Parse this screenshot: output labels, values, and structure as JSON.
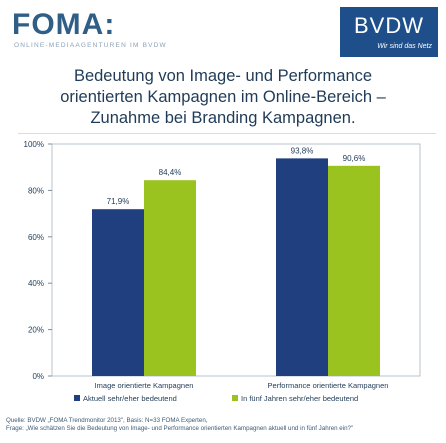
{
  "header": {
    "left_logo": "FOMA:",
    "left_logo_subtitle": "ONLINE-MEDIAAGENTUREN IM BVDW",
    "right_logo": "BVDW",
    "right_logo_tagline": "Wir sind das Netz"
  },
  "title": {
    "line1": "Bedeutung von Image- und Performance",
    "line2": "orientierten Kampagnen im Online-Bereich –",
    "line3": "Zunahme bei Branding Kampagnen."
  },
  "chart_data": {
    "type": "bar",
    "categories": [
      "Image orientierte Kampagnen",
      "Performance orientierte Kampagnen"
    ],
    "series": [
      {
        "name": "Aktuell sehr/eher bedeutend",
        "values": [
          71.9,
          93.8
        ],
        "labels": [
          "71,9%",
          "93,8%"
        ],
        "color": "#1f3f7e"
      },
      {
        "name": "In fünf Jahren sehr/eher bedeutend",
        "values": [
          84.4,
          90.6
        ],
        "labels": [
          "84,4%",
          "90,6%"
        ],
        "color": "#9bc31f"
      }
    ],
    "ylim": [
      0,
      100
    ],
    "yticks": [
      "0%",
      "20%",
      "40%",
      "60%",
      "80%",
      "100%"
    ],
    "legend": "bottom",
    "grid": false
  },
  "footer": {
    "source_line": "Quelle: BVDW „FOMA Trendmonitor 2013\", Basis: N=33 FOMA Experten,",
    "question_line": "Frage: „Wie schätzen Sie die Bedeutung von Image- und Performance orientierten Kampagnen aktuell und in fünf Jahren ein?\""
  },
  "colors": {
    "brand_blue": "#1f4f8a",
    "series_blue": "#1f3f7e",
    "series_green": "#9bc31f",
    "text": "#1f3b57"
  }
}
